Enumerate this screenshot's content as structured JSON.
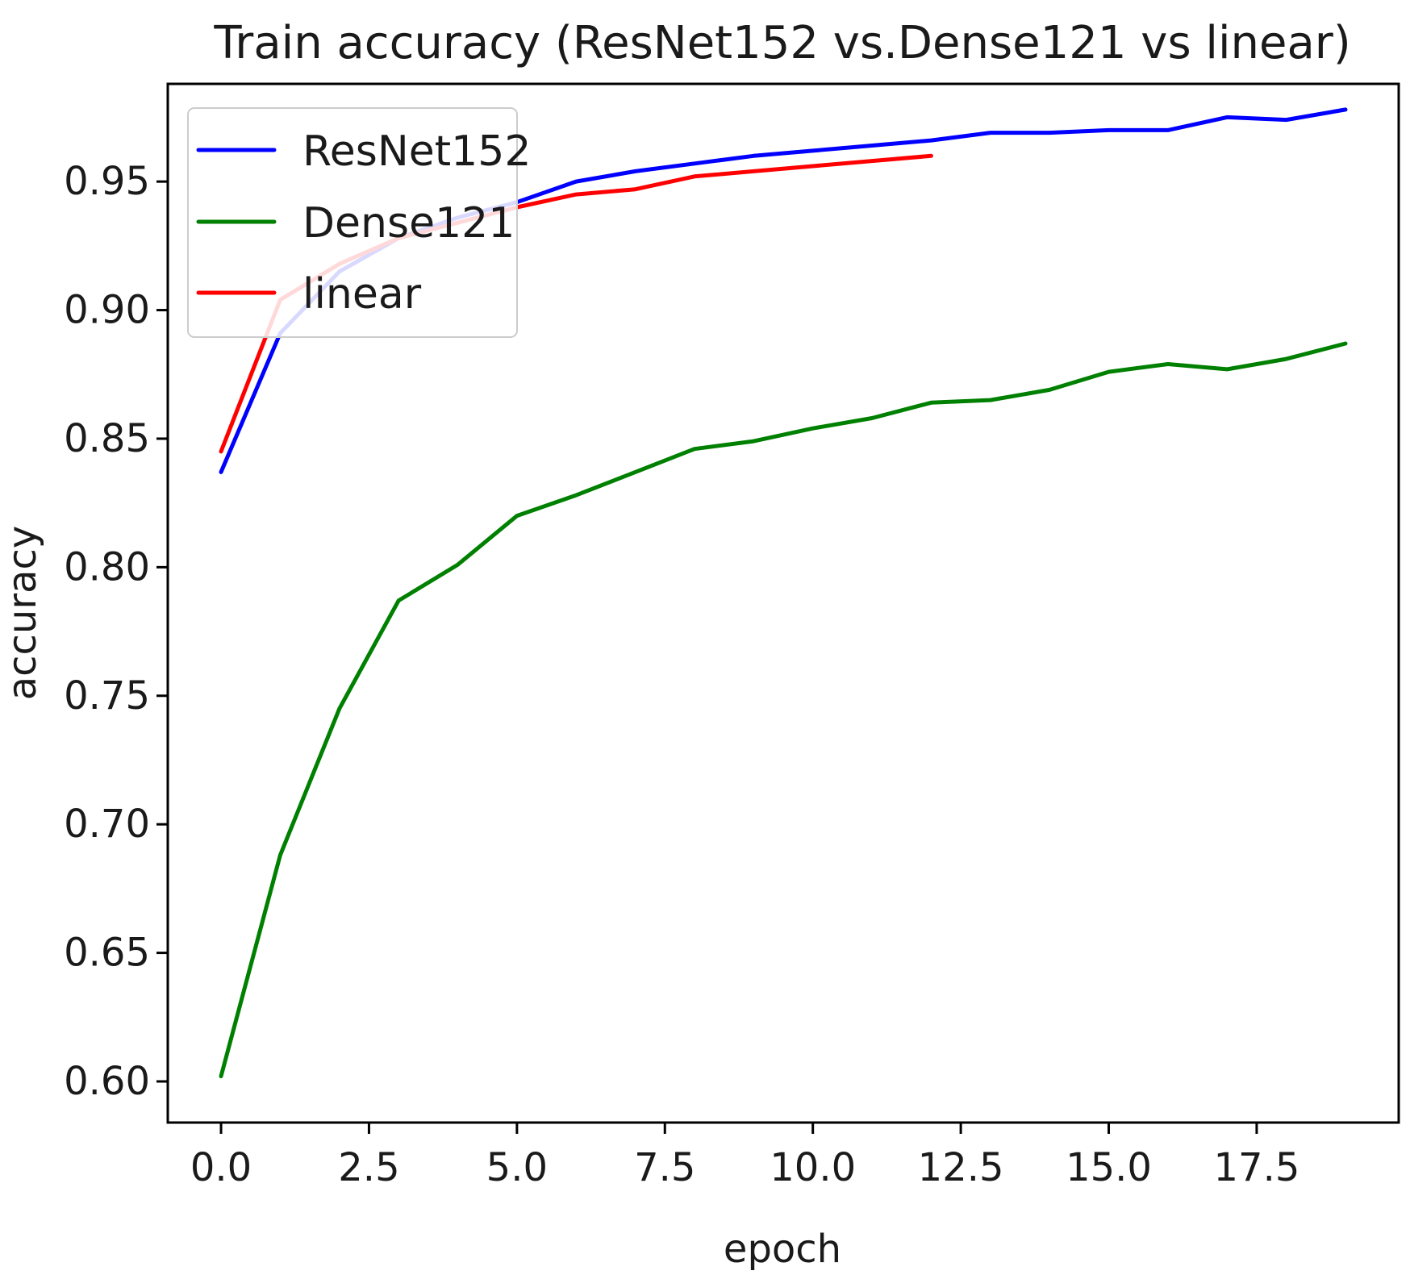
{
  "chart_data": {
    "type": "line",
    "title": "Train accuracy (ResNet152 vs.Dense121 vs linear)",
    "xlabel": "epoch",
    "ylabel": "accuracy",
    "xlim": [
      -0.9,
      19.9
    ],
    "ylim": [
      0.584,
      0.988
    ],
    "xticks": [
      0.0,
      2.5,
      5.0,
      7.5,
      10.0,
      12.5,
      15.0,
      17.5
    ],
    "xtick_labels": [
      "0.0",
      "2.5",
      "5.0",
      "7.5",
      "10.0",
      "12.5",
      "15.0",
      "17.5"
    ],
    "yticks": [
      0.6,
      0.65,
      0.7,
      0.75,
      0.8,
      0.85,
      0.9,
      0.95
    ],
    "ytick_labels": [
      "0.60",
      "0.65",
      "0.70",
      "0.75",
      "0.80",
      "0.85",
      "0.90",
      "0.95"
    ],
    "grid": false,
    "legend": "top-left",
    "series": [
      {
        "name": "ResNet152",
        "color": "#0000ff",
        "x": [
          0,
          1,
          2,
          3,
          4,
          5,
          6,
          7,
          8,
          9,
          10,
          11,
          12,
          13,
          14,
          15,
          16,
          17,
          18,
          19
        ],
        "y": [
          0.837,
          0.891,
          0.915,
          0.928,
          0.936,
          0.942,
          0.95,
          0.954,
          0.957,
          0.96,
          0.962,
          0.964,
          0.966,
          0.969,
          0.969,
          0.97,
          0.97,
          0.975,
          0.974,
          0.978
        ]
      },
      {
        "name": "Dense121",
        "color": "#008000",
        "x": [
          0,
          1,
          2,
          3,
          4,
          5,
          6,
          7,
          8,
          9,
          10,
          11,
          12,
          13,
          14,
          15,
          16,
          17,
          18,
          19
        ],
        "y": [
          0.602,
          0.688,
          0.745,
          0.787,
          0.801,
          0.82,
          0.828,
          0.837,
          0.846,
          0.849,
          0.854,
          0.858,
          0.864,
          0.865,
          0.869,
          0.876,
          0.879,
          0.877,
          0.881,
          0.887
        ]
      },
      {
        "name": "linear",
        "color": "#ff0000",
        "x": [
          0,
          1,
          2,
          3,
          4,
          5,
          6,
          7,
          8,
          9,
          10,
          11,
          12
        ],
        "y": [
          0.845,
          0.904,
          0.918,
          0.928,
          0.934,
          0.94,
          0.945,
          0.947,
          0.952,
          0.954,
          0.956,
          0.958,
          0.96
        ]
      }
    ]
  }
}
